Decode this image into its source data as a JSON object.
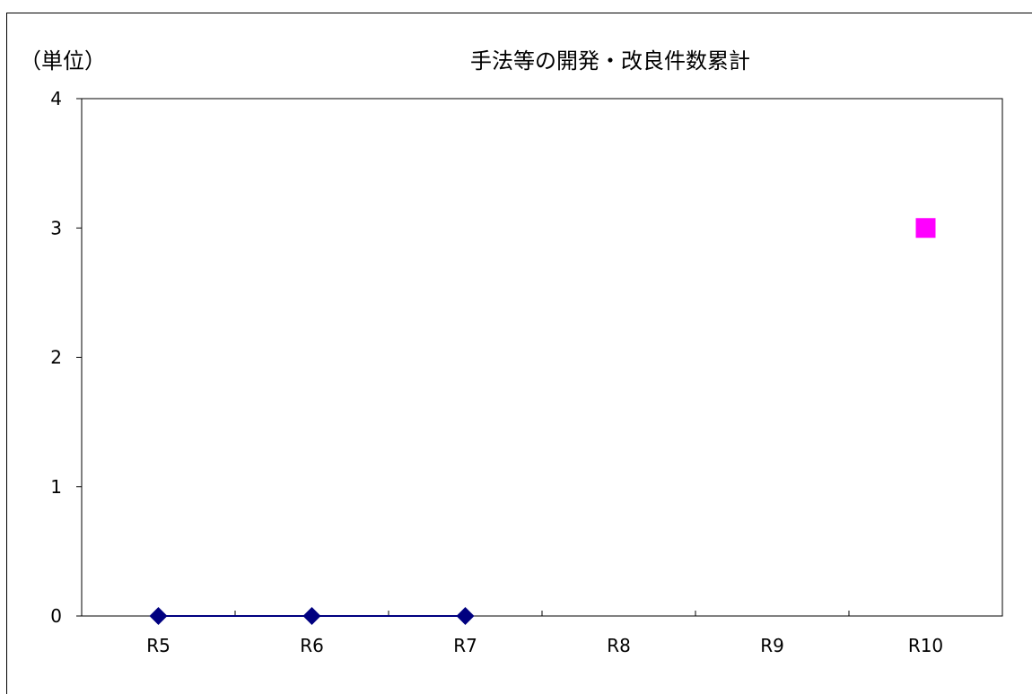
{
  "chart_data": {
    "type": "line",
    "title": "手法等の開発・改良件数累計",
    "unit_label": "（単位）",
    "xlabel": "",
    "ylabel": "",
    "categories": [
      "R5",
      "R6",
      "R7",
      "R8",
      "R9",
      "R10"
    ],
    "ylim": [
      0,
      4
    ],
    "yticks": [
      0,
      1,
      2,
      3,
      4
    ],
    "grid": false,
    "legend": "none",
    "series": [
      {
        "values": [
          0,
          0,
          0,
          null,
          null,
          null
        ],
        "color": "#000080",
        "marker": "diamond",
        "line": true
      },
      {
        "values": [
          null,
          null,
          null,
          null,
          null,
          3
        ],
        "color": "#FF00FF",
        "marker": "square",
        "line": false
      }
    ]
  }
}
